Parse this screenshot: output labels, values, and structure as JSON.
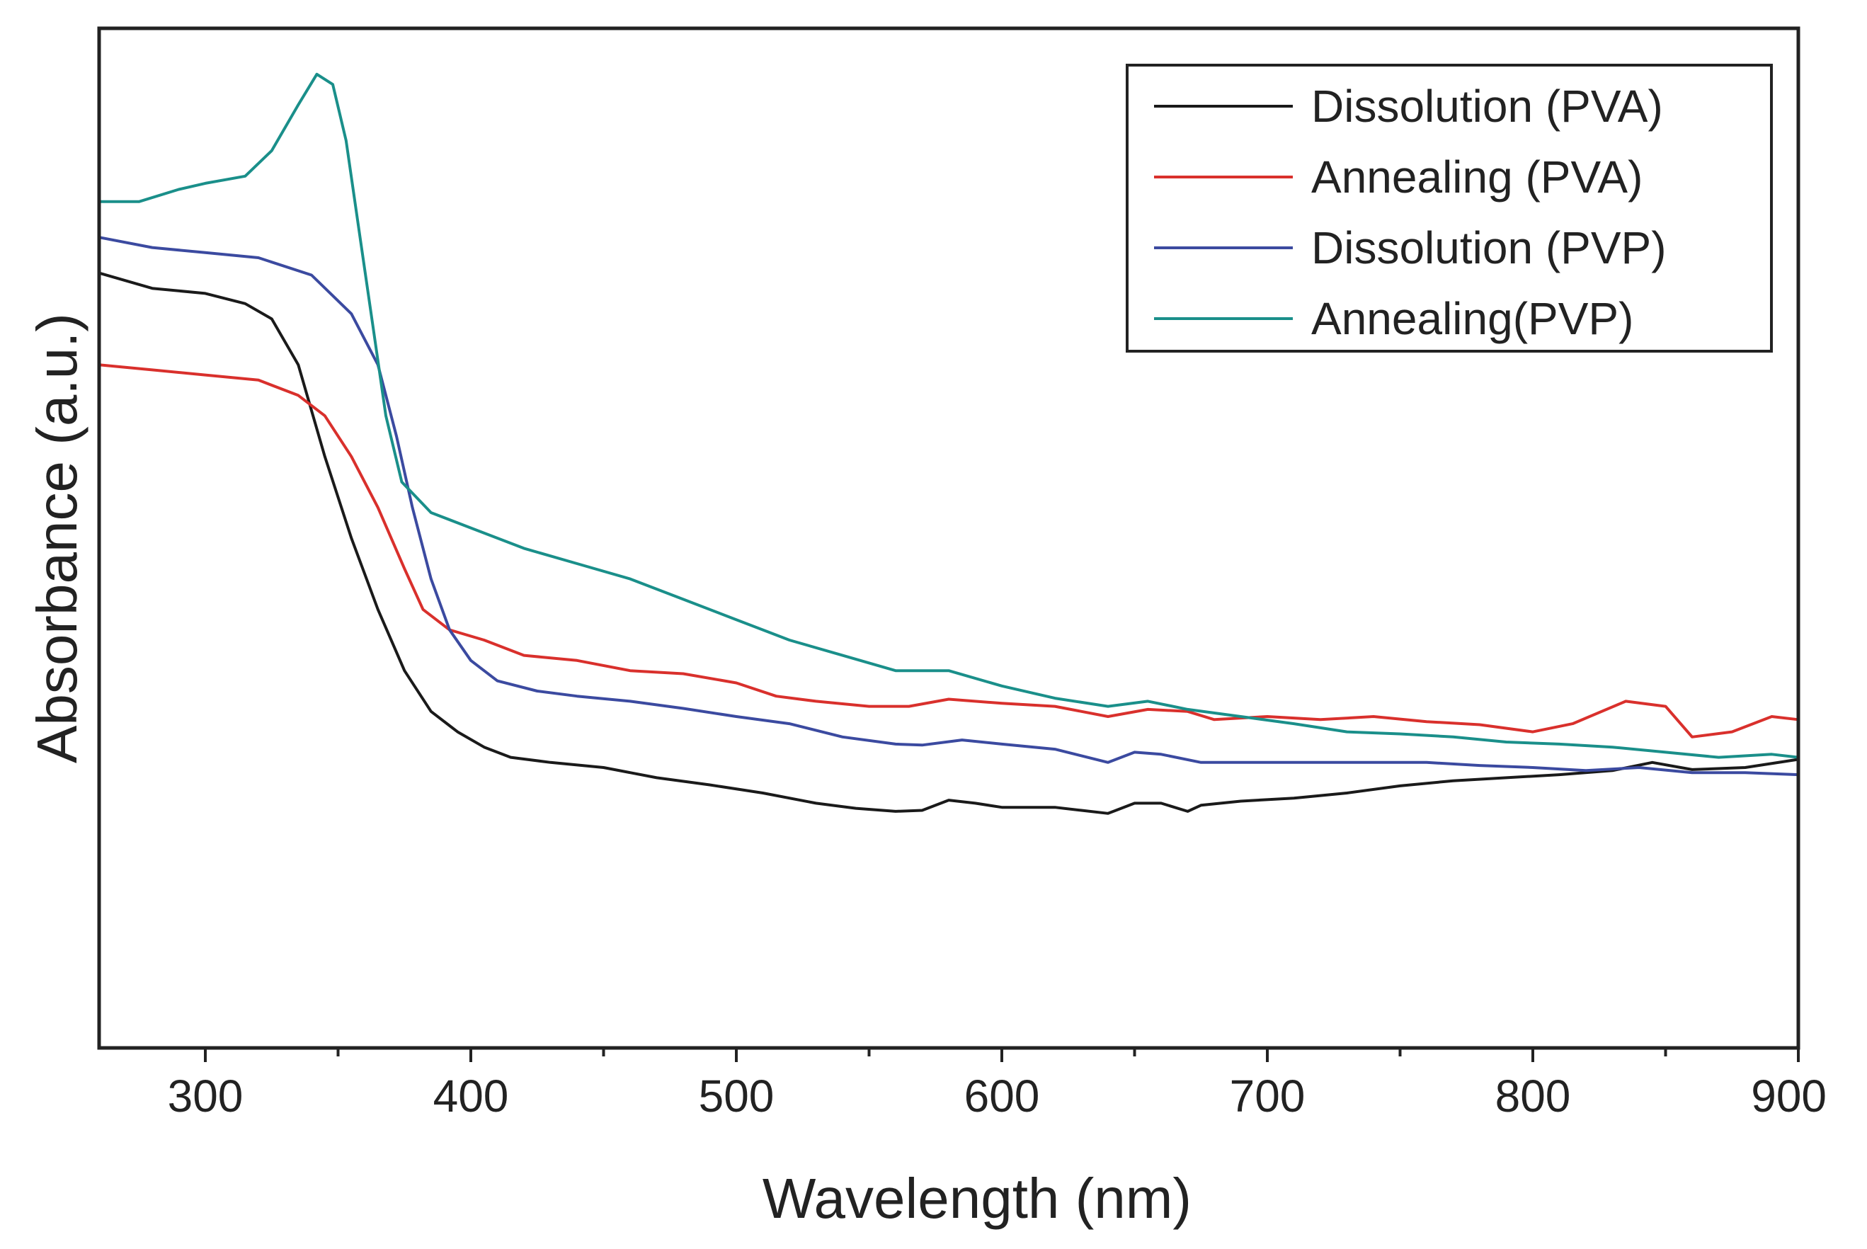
{
  "chart_data": {
    "type": "line",
    "title": "",
    "xlabel": "Wavelength (nm)",
    "ylabel": "Absorbance (a.u.)",
    "xlim": [
      260,
      900
    ],
    "ylim": [
      0,
      1
    ],
    "x_ticks": [
      300,
      400,
      500,
      600,
      700,
      800,
      900
    ],
    "x_minor_ticks": [
      350,
      450,
      550,
      650,
      750,
      850
    ],
    "y_ticks": [],
    "grid": false,
    "legend_position": "top-right",
    "series": [
      {
        "name": "Dissolution (PVA)",
        "color": "#1a1a1a",
        "points": [
          [
            260,
            0.76
          ],
          [
            280,
            0.745
          ],
          [
            300,
            0.74
          ],
          [
            315,
            0.73
          ],
          [
            325,
            0.715
          ],
          [
            335,
            0.67
          ],
          [
            345,
            0.58
          ],
          [
            355,
            0.5
          ],
          [
            365,
            0.43
          ],
          [
            375,
            0.37
          ],
          [
            385,
            0.33
          ],
          [
            395,
            0.31
          ],
          [
            405,
            0.295
          ],
          [
            415,
            0.285
          ],
          [
            430,
            0.28
          ],
          [
            450,
            0.275
          ],
          [
            470,
            0.265
          ],
          [
            490,
            0.258
          ],
          [
            510,
            0.25
          ],
          [
            530,
            0.24
          ],
          [
            545,
            0.235
          ],
          [
            560,
            0.232
          ],
          [
            570,
            0.233
          ],
          [
            580,
            0.243
          ],
          [
            590,
            0.24
          ],
          [
            600,
            0.236
          ],
          [
            620,
            0.236
          ],
          [
            630,
            0.233
          ],
          [
            640,
            0.23
          ],
          [
            650,
            0.24
          ],
          [
            660,
            0.24
          ],
          [
            670,
            0.232
          ],
          [
            675,
            0.238
          ],
          [
            690,
            0.242
          ],
          [
            710,
            0.245
          ],
          [
            730,
            0.25
          ],
          [
            750,
            0.257
          ],
          [
            770,
            0.262
          ],
          [
            790,
            0.265
          ],
          [
            810,
            0.268
          ],
          [
            830,
            0.272
          ],
          [
            845,
            0.28
          ],
          [
            860,
            0.273
          ],
          [
            880,
            0.275
          ],
          [
            900,
            0.283
          ]
        ]
      },
      {
        "name": "Annealing (PVA)",
        "color": "#d9302c",
        "points": [
          [
            260,
            0.67
          ],
          [
            280,
            0.665
          ],
          [
            300,
            0.66
          ],
          [
            320,
            0.655
          ],
          [
            335,
            0.64
          ],
          [
            345,
            0.62
          ],
          [
            355,
            0.58
          ],
          [
            365,
            0.53
          ],
          [
            375,
            0.47
          ],
          [
            382,
            0.43
          ],
          [
            392,
            0.41
          ],
          [
            405,
            0.4
          ],
          [
            420,
            0.385
          ],
          [
            440,
            0.38
          ],
          [
            460,
            0.37
          ],
          [
            480,
            0.367
          ],
          [
            500,
            0.358
          ],
          [
            515,
            0.345
          ],
          [
            530,
            0.34
          ],
          [
            550,
            0.335
          ],
          [
            565,
            0.335
          ],
          [
            580,
            0.342
          ],
          [
            600,
            0.338
          ],
          [
            620,
            0.335
          ],
          [
            640,
            0.325
          ],
          [
            655,
            0.332
          ],
          [
            670,
            0.33
          ],
          [
            680,
            0.322
          ],
          [
            700,
            0.325
          ],
          [
            720,
            0.322
          ],
          [
            740,
            0.325
          ],
          [
            760,
            0.32
          ],
          [
            780,
            0.317
          ],
          [
            800,
            0.31
          ],
          [
            815,
            0.318
          ],
          [
            835,
            0.34
          ],
          [
            850,
            0.335
          ],
          [
            860,
            0.305
          ],
          [
            875,
            0.31
          ],
          [
            890,
            0.325
          ],
          [
            900,
            0.322
          ]
        ]
      },
      {
        "name": "Dissolution (PVP)",
        "color": "#3b4aa0",
        "points": [
          [
            260,
            0.795
          ],
          [
            280,
            0.785
          ],
          [
            300,
            0.78
          ],
          [
            320,
            0.775
          ],
          [
            340,
            0.758
          ],
          [
            355,
            0.72
          ],
          [
            365,
            0.67
          ],
          [
            372,
            0.6
          ],
          [
            378,
            0.53
          ],
          [
            385,
            0.46
          ],
          [
            392,
            0.41
          ],
          [
            400,
            0.38
          ],
          [
            410,
            0.36
          ],
          [
            425,
            0.35
          ],
          [
            440,
            0.345
          ],
          [
            460,
            0.34
          ],
          [
            480,
            0.333
          ],
          [
            500,
            0.325
          ],
          [
            520,
            0.318
          ],
          [
            540,
            0.305
          ],
          [
            560,
            0.298
          ],
          [
            570,
            0.297
          ],
          [
            585,
            0.302
          ],
          [
            600,
            0.298
          ],
          [
            620,
            0.293
          ],
          [
            640,
            0.28
          ],
          [
            650,
            0.29
          ],
          [
            660,
            0.288
          ],
          [
            675,
            0.28
          ],
          [
            700,
            0.28
          ],
          [
            720,
            0.28
          ],
          [
            740,
            0.28
          ],
          [
            760,
            0.28
          ],
          [
            780,
            0.277
          ],
          [
            800,
            0.275
          ],
          [
            820,
            0.272
          ],
          [
            840,
            0.275
          ],
          [
            860,
            0.27
          ],
          [
            880,
            0.27
          ],
          [
            900,
            0.268
          ]
        ]
      },
      {
        "name": "Annealing(PVP)",
        "color": "#1a8f8a",
        "points": [
          [
            260,
            0.83
          ],
          [
            275,
            0.83
          ],
          [
            290,
            0.842
          ],
          [
            300,
            0.848
          ],
          [
            315,
            0.855
          ],
          [
            325,
            0.88
          ],
          [
            335,
            0.925
          ],
          [
            342,
            0.955
          ],
          [
            348,
            0.945
          ],
          [
            353,
            0.89
          ],
          [
            358,
            0.8
          ],
          [
            363,
            0.71
          ],
          [
            368,
            0.62
          ],
          [
            374,
            0.555
          ],
          [
            385,
            0.525
          ],
          [
            400,
            0.51
          ],
          [
            420,
            0.49
          ],
          [
            440,
            0.475
          ],
          [
            460,
            0.46
          ],
          [
            480,
            0.44
          ],
          [
            500,
            0.42
          ],
          [
            520,
            0.4
          ],
          [
            540,
            0.385
          ],
          [
            560,
            0.37
          ],
          [
            580,
            0.37
          ],
          [
            600,
            0.355
          ],
          [
            620,
            0.343
          ],
          [
            640,
            0.335
          ],
          [
            655,
            0.34
          ],
          [
            670,
            0.332
          ],
          [
            690,
            0.325
          ],
          [
            710,
            0.318
          ],
          [
            730,
            0.31
          ],
          [
            750,
            0.308
          ],
          [
            770,
            0.305
          ],
          [
            790,
            0.3
          ],
          [
            810,
            0.298
          ],
          [
            830,
            0.295
          ],
          [
            850,
            0.29
          ],
          [
            870,
            0.285
          ],
          [
            890,
            0.288
          ],
          [
            900,
            0.285
          ]
        ]
      }
    ]
  }
}
